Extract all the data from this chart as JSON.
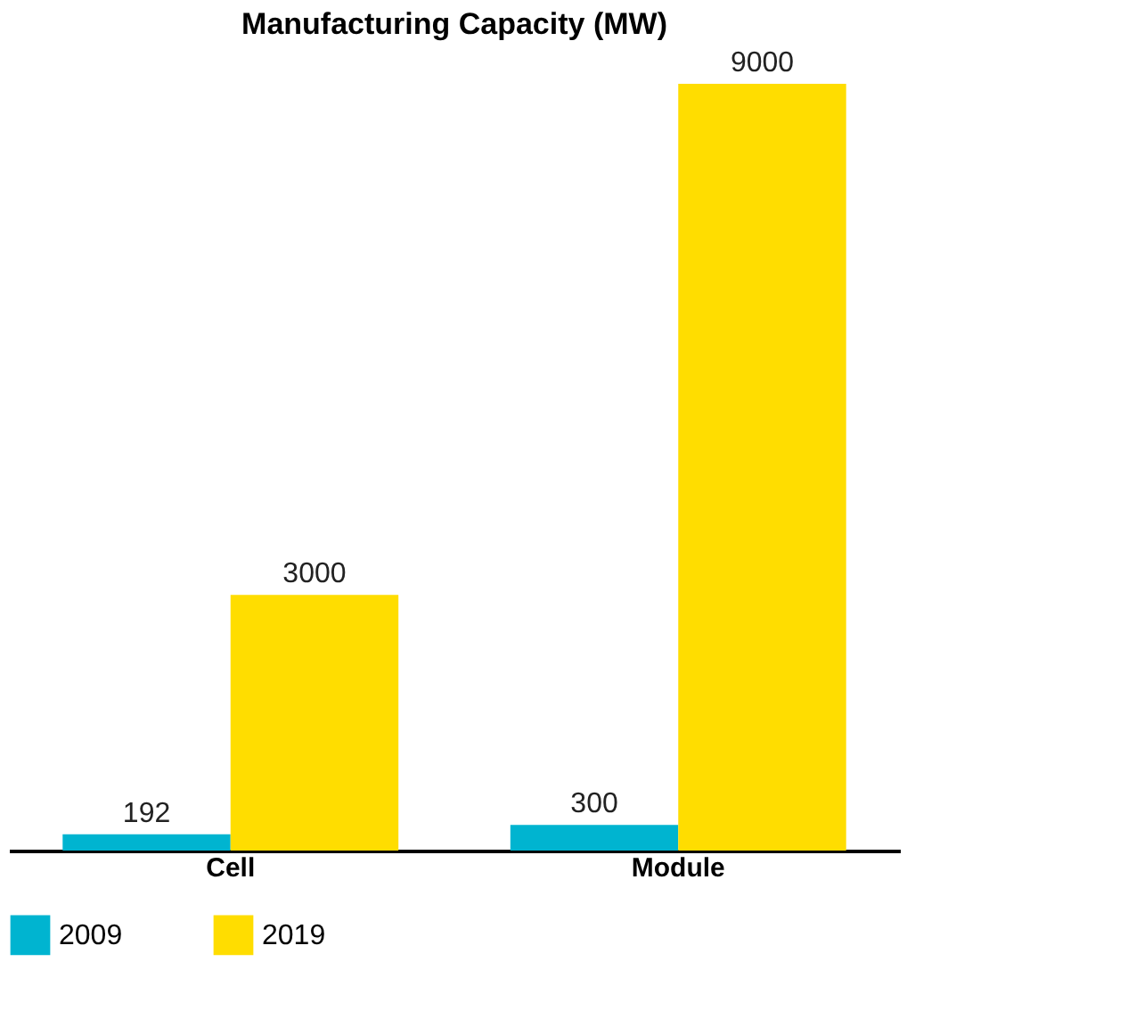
{
  "chart_data": {
    "type": "bar",
    "title": "Manufacturing Capacity (MW)",
    "categories": [
      "Cell",
      "Module"
    ],
    "series": [
      {
        "name": "2009",
        "color": "#00b4d0",
        "values": [
          192,
          300
        ]
      },
      {
        "name": "2019",
        "color": "#ffdd00",
        "values": [
          3000,
          9000
        ]
      }
    ],
    "data_labels": true,
    "legend": "bottom",
    "grid": false,
    "tick_labels": "x"
  }
}
